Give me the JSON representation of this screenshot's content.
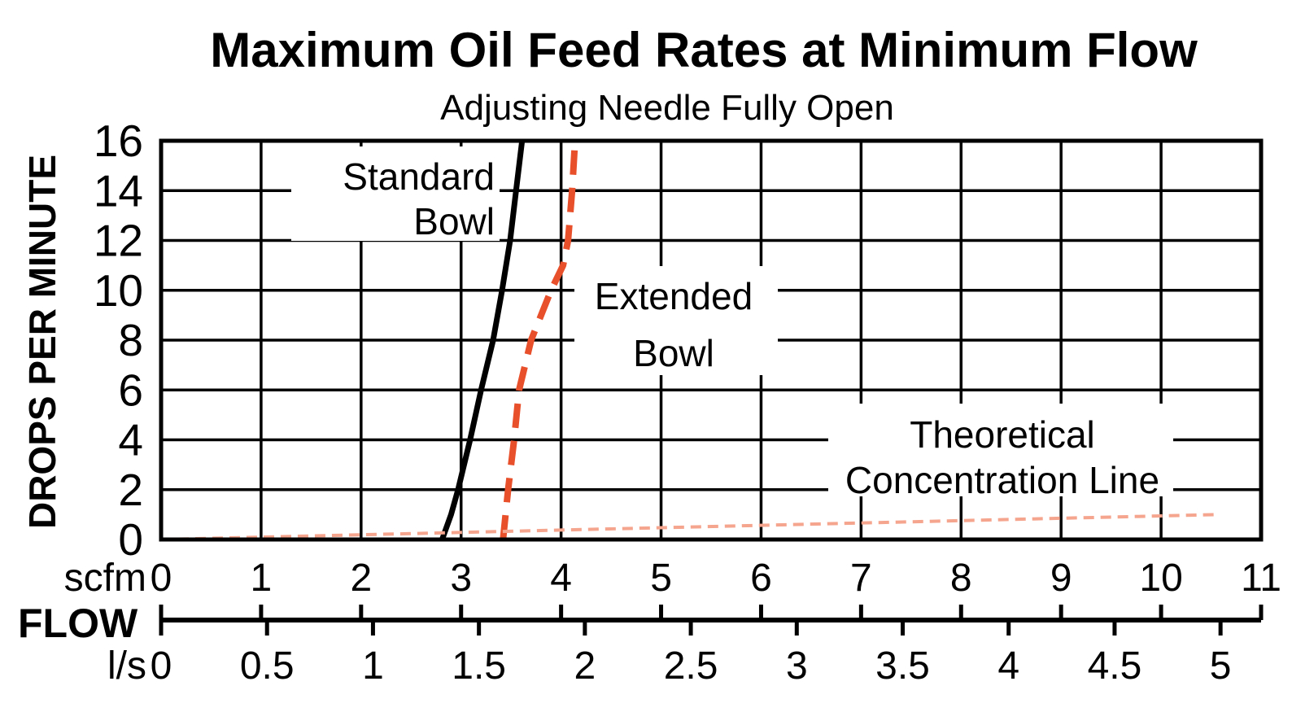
{
  "title": "Maximum Oil Feed Rates at Minimum Flow",
  "subtitle": "Adjusting Needle Fully Open",
  "chart_data": {
    "type": "line",
    "title": "Maximum Oil Feed Rates at Minimum Flow",
    "subtitle": "Adjusting Needle Fully Open",
    "ylabel": "DROPS PER MINUTE",
    "xlabel": "FLOW",
    "grid": true,
    "legend_position": "inline-annotations",
    "y_axis": {
      "min": 0,
      "max": 16,
      "step": 2,
      "ticks": [
        0,
        2,
        4,
        6,
        8,
        10,
        12,
        14,
        16
      ],
      "tick_labels": [
        "0",
        "2",
        "4",
        "6",
        "8",
        "10",
        "12",
        "14",
        "16"
      ]
    },
    "x_axis_scfm": {
      "unit": "scfm",
      "min": 0,
      "max": 11,
      "step": 1,
      "ticks": [
        0,
        1,
        2,
        3,
        4,
        5,
        6,
        7,
        8,
        9,
        10,
        11
      ],
      "tick_labels": [
        "0",
        "1",
        "2",
        "3",
        "4",
        "5",
        "6",
        "7",
        "8",
        "9",
        "10",
        "11"
      ]
    },
    "x_axis_ls": {
      "unit": "l/s",
      "min": 0,
      "max": 5,
      "step": 0.5,
      "scfm_per_unit": 2.1189,
      "ticks": [
        0,
        0.5,
        1,
        1.5,
        2,
        2.5,
        3,
        3.5,
        4,
        4.5,
        5
      ],
      "tick_labels": [
        "0",
        "0.5",
        "1",
        "1.5",
        "2",
        "2.5",
        "3",
        "3.5",
        "4",
        "4.5",
        "5"
      ]
    },
    "series": [
      {
        "name": "Standard Bowl",
        "label_lines": [
          "Standard",
          "Bowl"
        ],
        "line_style": "solid",
        "color": "#000000",
        "points_scfm_drops": [
          [
            2.81,
            0
          ],
          [
            2.9,
            1
          ],
          [
            2.97,
            2
          ],
          [
            3.09,
            4
          ],
          [
            3.2,
            6
          ],
          [
            3.32,
            8
          ],
          [
            3.41,
            10
          ],
          [
            3.49,
            12
          ],
          [
            3.55,
            14
          ],
          [
            3.61,
            16
          ]
        ]
      },
      {
        "name": "Extended Bowl",
        "label_lines": [
          "Extended",
          "Bowl"
        ],
        "line_style": "dashed",
        "color": "#E8502C",
        "points_scfm_drops": [
          [
            3.42,
            0
          ],
          [
            3.47,
            2
          ],
          [
            3.53,
            4
          ],
          [
            3.58,
            6
          ],
          [
            3.7,
            8
          ],
          [
            3.9,
            10
          ],
          [
            4.02,
            11
          ],
          [
            4.07,
            12
          ],
          [
            4.11,
            14
          ],
          [
            4.14,
            16
          ]
        ]
      },
      {
        "name": "Theoretical Concentration Line",
        "label_lines": [
          "Theoretical",
          "Concentration Line"
        ],
        "line_style": "fine-dashed",
        "color": "#F5A48D",
        "points_scfm_drops": [
          [
            0,
            0
          ],
          [
            10.55,
            1
          ]
        ]
      }
    ]
  }
}
